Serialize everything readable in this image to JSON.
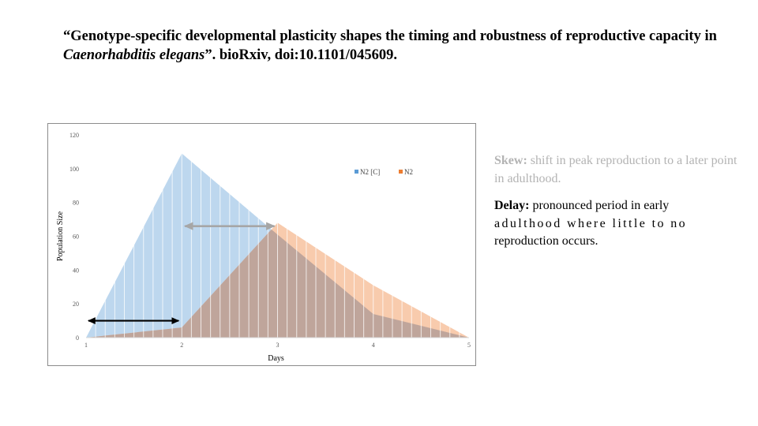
{
  "title": {
    "part1": "“Genotype-specific developmental plasticity shapes the timing and robustness of reproductive capacity in ",
    "italic": "Caenorhabditis elegans",
    "part2": "”. bioRxiv, doi:10.1101/045609."
  },
  "notes": {
    "skew_term": "Skew:",
    "skew_text": " shift in peak reproduction to a later point in adulthood.",
    "delay_term": "Delay:",
    "delay_line1": " pronounced period in early",
    "delay_line2": "adulthood where little to no",
    "delay_line3": "reproduction occurs."
  },
  "colors": {
    "n2c_fill": "#bdd7ee",
    "n2_fill": "#f8cbad",
    "overlap_fill": "#bfa59b",
    "gridline": "#ffffff",
    "arrow_grey": "#a6a6a6",
    "arrow_black": "#000000"
  },
  "chart_data": {
    "type": "area",
    "xlabel": "Days",
    "ylabel": "Population Size",
    "x_ticks": [
      "1",
      "2",
      "3",
      "4",
      "5"
    ],
    "y_ticks": [
      "0",
      "20",
      "40",
      "60",
      "80",
      "100",
      "120"
    ],
    "xlim": [
      1,
      5
    ],
    "ylim": [
      0,
      120
    ],
    "legend": {
      "placement": "top-right"
    },
    "series": [
      {
        "name": "N2 [C]",
        "color": "#bdd7ee",
        "x": [
          1,
          2,
          3,
          4,
          5
        ],
        "values": [
          0,
          109,
          61,
          14,
          0
        ]
      },
      {
        "name": "N2",
        "color": "#f8cbad",
        "x": [
          1,
          2,
          3,
          4,
          5
        ],
        "values": [
          0,
          6,
          68,
          31,
          0
        ]
      }
    ],
    "annotations": [
      {
        "type": "double-arrow",
        "color": "#a6a6a6",
        "x_from": 2.0,
        "x_to": 3.0,
        "y": 66,
        "meaning": "skew"
      },
      {
        "type": "double-arrow",
        "color": "#000000",
        "x_from": 1.0,
        "x_to": 2.0,
        "y": 10,
        "meaning": "delay"
      }
    ]
  }
}
